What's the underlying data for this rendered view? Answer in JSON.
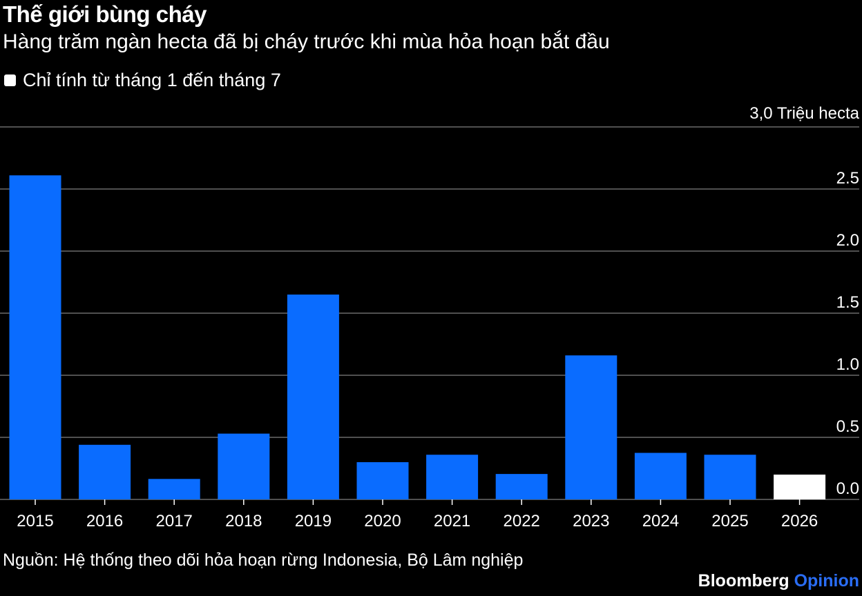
{
  "header": {
    "title": "Thế giới bùng cháy",
    "subtitle": "Hàng trăm ngàn hecta đã bị cháy trước khi mùa hỏa hoạn bắt đầu"
  },
  "legend": {
    "label": "Chỉ tính từ tháng 1 đến tháng 7",
    "color": "#ffffff"
  },
  "footer": {
    "source": "Nguồn: Hệ thống theo dõi hỏa hoạn rừng Indonesia, Bộ Lâm nghiệp",
    "brand": "Bloomberg",
    "brand_suffix": "Opinion"
  },
  "chart_data": {
    "type": "bar",
    "categories": [
      "2015",
      "2016",
      "2017",
      "2018",
      "2019",
      "2020",
      "2021",
      "2022",
      "2023",
      "2024",
      "2025",
      "2026"
    ],
    "values": [
      2.61,
      0.44,
      0.165,
      0.53,
      1.65,
      0.3,
      0.36,
      0.205,
      1.16,
      0.375,
      0.36,
      0.2
    ],
    "partial_year_flags": [
      false,
      false,
      false,
      false,
      false,
      false,
      false,
      false,
      false,
      false,
      false,
      true
    ],
    "colors": {
      "full_year": "#0a6cff",
      "partial_year": "#ffffff",
      "grid": "#6b6b6b"
    },
    "y_axis_unit_label": "3,0 Triệu hecta",
    "y_ticks": [
      {
        "value": 3.0,
        "label": ""
      },
      {
        "value": 2.5,
        "label": "2.5"
      },
      {
        "value": 2.0,
        "label": "2.0"
      },
      {
        "value": 1.5,
        "label": "1.5"
      },
      {
        "value": 1.0,
        "label": "1.0"
      },
      {
        "value": 0.5,
        "label": "0.5"
      },
      {
        "value": 0.0,
        "label": "0.0"
      }
    ],
    "ylim": [
      0,
      3.0
    ],
    "grid": true,
    "y_axis_side": "right"
  }
}
